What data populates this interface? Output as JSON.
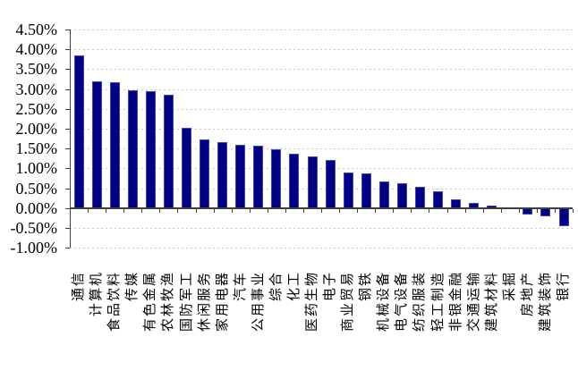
{
  "chart_data": {
    "type": "bar",
    "title": "",
    "xlabel": "",
    "ylabel": "",
    "unit": "%",
    "categories": [
      "通信",
      "计算机",
      "食品饮料",
      "传媒",
      "有色金属",
      "农林牧渔",
      "国防军工",
      "休闲服务",
      "家用电器",
      "汽车",
      "公用事业",
      "综合",
      "化工",
      "医药生物",
      "电子",
      "商业贸易",
      "钢铁",
      "机械设备",
      "电气设备",
      "纺织服装",
      "轻工制造",
      "非银金融",
      "交通运输",
      "建筑材料",
      "采掘",
      "房地产",
      "建筑装饰",
      "银行"
    ],
    "values": [
      3.85,
      3.2,
      3.18,
      2.96,
      2.94,
      2.86,
      2.03,
      1.72,
      1.66,
      1.59,
      1.58,
      1.48,
      1.37,
      1.3,
      1.22,
      0.89,
      0.88,
      0.68,
      0.63,
      0.54,
      0.41,
      0.21,
      0.13,
      0.06,
      0.02,
      -0.16,
      -0.22,
      -0.46
    ],
    "ylim": [
      -1.0,
      4.5
    ],
    "ytick_step": 0.5,
    "ytick_labels": [
      "4.50%",
      "4.00%",
      "3.50%",
      "3.00%",
      "2.50%",
      "2.00%",
      "1.50%",
      "1.00%",
      "0.50%",
      "0.00%",
      "-0.50%",
      "-1.00%"
    ],
    "grid": true,
    "gridline_style": "dashed",
    "legend_position": "none",
    "bar_color": "#000084",
    "bar_border_color": "#4343bb",
    "gridline_color": "#c8c8c8",
    "axis_color": "#404040",
    "label_rotation_deg": 90
  }
}
